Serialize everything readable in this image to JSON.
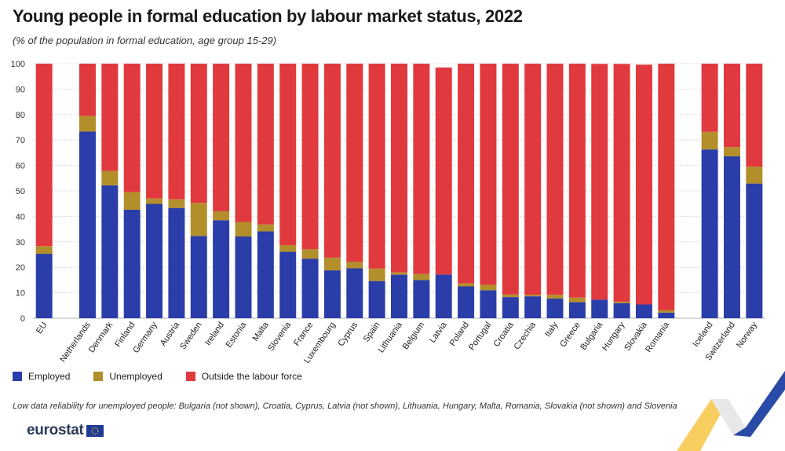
{
  "title": "Young people in formal education by labour market status, 2022",
  "subtitle": "(% of the population in formal education, age group 15-29)",
  "footnote": "Low data reliability for unemployed people: Bulgaria (not shown), Croatia, Cyprus, Latvia (not shown), Lithuania, Hungary, Malta, Romania, Slovakia (not shown) and Slovenia",
  "logo": {
    "text": "eurostat"
  },
  "colors": {
    "employed": "#2a3da8",
    "unemployed": "#b38f2b",
    "outside": "#e03a3e",
    "grid": "#cfcfcf",
    "corner_yellow": "#f6c543",
    "corner_blue": "#2a4aa8"
  },
  "chart_data": {
    "type": "bar",
    "stacked": true,
    "ylim": [
      0,
      100
    ],
    "yticks": [
      0,
      10,
      20,
      30,
      40,
      50,
      60,
      70,
      80,
      90,
      100
    ],
    "grid": true,
    "legend": "bottom-left",
    "categories": [
      "EU",
      "Netherlands",
      "Denmark",
      "Finland",
      "Germany",
      "Austria",
      "Sweden",
      "Ireland",
      "Estonia",
      "Malta",
      "Slovenia",
      "France",
      "Luxembourg",
      "Cyprus",
      "Spain",
      "Lithuania",
      "Belgium",
      "Latvia",
      "Poland",
      "Portugal",
      "Croatia",
      "Czechia",
      "Italy",
      "Greece",
      "Bulgaria",
      "Hungary",
      "Slovakia",
      "Romania",
      "Iceland",
      "Switzerland",
      "Norway"
    ],
    "gap_before": [
      1,
      28
    ],
    "series": [
      {
        "name": "Employed",
        "values": [
          25.3,
          73.3,
          52.2,
          42.6,
          44.9,
          43.3,
          32.3,
          38.5,
          32.1,
          34.1,
          26.1,
          23.4,
          18.8,
          19.6,
          14.6,
          17.1,
          15.0,
          17.2,
          12.5,
          11.0,
          8.3,
          8.6,
          7.7,
          6.3,
          7.3,
          5.9,
          5.4,
          2.2,
          66.3,
          63.6,
          52.9
        ]
      },
      {
        "name": "Unemployed",
        "values": [
          3.0,
          6.1,
          5.6,
          6.9,
          2.1,
          3.4,
          13.0,
          3.5,
          5.7,
          2.7,
          2.6,
          3.7,
          5.0,
          2.5,
          4.9,
          0.9,
          2.4,
          0.0,
          1.2,
          2.1,
          1.0,
          0.6,
          1.5,
          1.8,
          0.0,
          0.6,
          0.0,
          0.9,
          6.9,
          3.6,
          6.6
        ]
      },
      {
        "name": "Outside the labour force",
        "values": [
          71.7,
          20.6,
          42.2,
          50.5,
          53.0,
          53.3,
          54.7,
          58.0,
          62.2,
          63.2,
          71.3,
          72.9,
          76.2,
          77.9,
          80.5,
          82.0,
          82.6,
          81.3,
          86.3,
          86.9,
          90.7,
          90.8,
          90.8,
          91.9,
          92.6,
          93.4,
          94.2,
          96.9,
          26.8,
          32.8,
          40.5
        ]
      }
    ]
  }
}
